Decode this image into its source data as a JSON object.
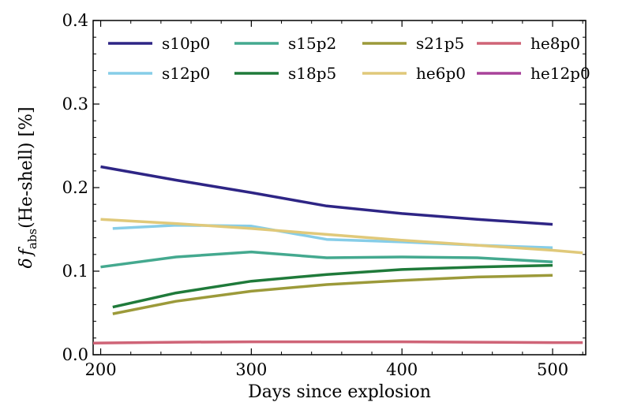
{
  "chart_data": {
    "type": "line",
    "title": "",
    "xlabel": "Days since explosion",
    "ylabel": "δ f_abs(He-shell) [%]",
    "ylabel_parts": {
      "symbol": "δ",
      "var": "f",
      "sub": "abs",
      "rest": "(He-shell) [%]"
    },
    "xlim": [
      195,
      522
    ],
    "ylim": [
      0.0,
      0.4
    ],
    "xticks": [
      200,
      300,
      400,
      500
    ],
    "yticks": [
      0.0,
      0.1,
      0.2,
      0.3,
      0.4
    ],
    "ytick_labels": [
      "0.0",
      "0.1",
      "0.2",
      "0.3",
      "0.4"
    ],
    "legend_position": "top",
    "series": [
      {
        "name": "s10p0",
        "color": "#2e2585",
        "x": [
          200,
          250,
          300,
          350,
          400,
          450,
          500
        ],
        "y": [
          0.225,
          0.209,
          0.194,
          0.178,
          0.169,
          0.162,
          0.156
        ]
      },
      {
        "name": "s12p0",
        "color": "#86cde8",
        "x": [
          208,
          250,
          300,
          350,
          400,
          450,
          500
        ],
        "y": [
          0.151,
          0.155,
          0.154,
          0.138,
          0.135,
          0.131,
          0.128
        ]
      },
      {
        "name": "s15p2",
        "color": "#44a98f",
        "x": [
          200,
          250,
          300,
          350,
          400,
          450,
          500
        ],
        "y": [
          0.105,
          0.117,
          0.123,
          0.116,
          0.117,
          0.116,
          0.111
        ]
      },
      {
        "name": "s18p5",
        "color": "#1f7a3a",
        "x": [
          208,
          250,
          300,
          350,
          400,
          450,
          500
        ],
        "y": [
          0.057,
          0.074,
          0.088,
          0.096,
          0.102,
          0.105,
          0.107
        ]
      },
      {
        "name": "s21p5",
        "color": "#9c9a3a",
        "x": [
          208,
          250,
          300,
          350,
          400,
          450,
          500
        ],
        "y": [
          0.049,
          0.064,
          0.076,
          0.084,
          0.089,
          0.093,
          0.095
        ]
      },
      {
        "name": "he6p0",
        "color": "#e0c97a",
        "x": [
          200,
          250,
          300,
          350,
          400,
          450,
          500,
          520
        ],
        "y": [
          0.162,
          0.157,
          0.151,
          0.144,
          0.137,
          0.131,
          0.125,
          0.122
        ]
      },
      {
        "name": "he8p0",
        "color": "#cf6477",
        "x": [
          195,
          250,
          300,
          350,
          400,
          450,
          500,
          520
        ],
        "y": [
          0.014,
          0.015,
          0.0155,
          0.0155,
          0.0155,
          0.015,
          0.0145,
          0.0145
        ]
      },
      {
        "name": "he12p0",
        "color": "#a8429a",
        "x": [],
        "y": []
      }
    ]
  }
}
